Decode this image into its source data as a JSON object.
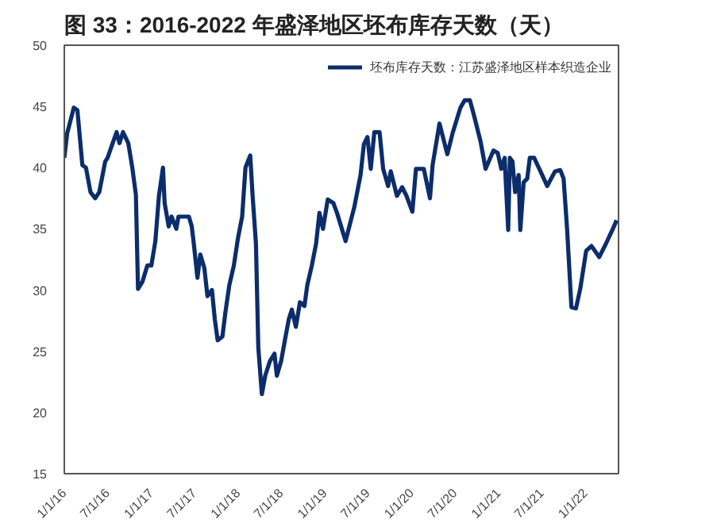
{
  "chart_data": {
    "type": "line",
    "title": "图 33：2016-2022 年盛泽地区坯布库存天数（天）",
    "x": [
      "2016-01-01",
      "2016-01-13",
      "2016-02-10",
      "2016-02-25",
      "2016-03-17",
      "2016-04-01",
      "2016-04-20",
      "2016-05-10",
      "2016-05-27",
      "2016-06-21",
      "2016-07-01",
      "2016-07-26",
      "2016-08-08",
      "2016-08-20",
      "2016-09-04",
      "2016-09-26",
      "2016-10-13",
      "2016-10-28",
      "2016-11-06",
      "2016-11-25",
      "2016-12-15",
      "2017-01-01",
      "2017-01-18",
      "2017-02-02",
      "2017-02-19",
      "2017-02-26",
      "2017-03-15",
      "2017-03-27",
      "2017-04-16",
      "2017-04-25",
      "2017-06-08",
      "2017-06-20",
      "2017-06-28",
      "2017-07-14",
      "2017-07-26",
      "2017-08-12",
      "2017-08-25",
      "2017-09-13",
      "2017-09-25",
      "2017-10-07",
      "2017-10-27",
      "2017-11-08",
      "2017-11-25",
      "2017-12-14",
      "2018-01-01",
      "2018-01-18",
      "2018-02-01",
      "2018-02-21",
      "2018-03-03",
      "2018-03-17",
      "2018-03-27",
      "2018-04-11",
      "2018-04-25",
      "2018-05-15",
      "2018-06-03",
      "2018-06-13",
      "2018-07-01",
      "2018-07-14",
      "2018-08-02",
      "2018-08-15",
      "2018-09-01",
      "2018-09-18",
      "2018-10-07",
      "2018-10-19",
      "2018-11-07",
      "2018-11-25",
      "2018-12-09",
      "2018-12-24",
      "2019-01-13",
      "2019-02-06",
      "2019-02-21",
      "2019-03-29",
      "2019-05-05",
      "2019-05-31",
      "2019-06-14",
      "2019-06-29",
      "2019-07-13",
      "2019-07-28",
      "2019-08-19",
      "2019-09-03",
      "2019-09-24",
      "2019-10-05",
      "2019-10-31",
      "2019-11-22",
      "2019-12-10",
      "2020-01-04",
      "2020-01-19",
      "2020-02-21",
      "2020-03-18",
      "2020-03-29",
      "2020-04-27",
      "2020-05-30",
      "2020-06-21",
      "2020-07-24",
      "2020-08-11",
      "2020-09-02",
      "2020-09-20",
      "2020-10-16",
      "2020-11-07",
      "2020-12-10",
      "2020-12-28",
      "2021-01-12",
      "2021-01-26",
      "2021-02-10",
      "2021-02-17",
      "2021-02-28",
      "2021-03-11",
      "2021-03-26",
      "2021-04-02",
      "2021-04-16",
      "2021-05-01",
      "2021-05-12",
      "2021-05-30",
      "2021-06-21",
      "2021-07-24",
      "2021-08-26",
      "2021-09-17",
      "2021-10-01",
      "2021-10-16",
      "2021-11-03",
      "2021-11-22",
      "2021-12-10",
      "2022-01-04",
      "2022-01-26",
      "2022-02-28",
      "2022-03-26",
      "2022-04-24",
      "2022-05-12"
    ],
    "series": [
      {
        "name": "坯布库存天数：江苏盛泽地区样本织造企业",
        "color": "#0c2d6b",
        "values": [
          40.8,
          42.8,
          44.9,
          44.7,
          40.2,
          40,
          38,
          37.5,
          38,
          40.5,
          40.8,
          42.2,
          42.9,
          42,
          42.9,
          42,
          40,
          37.8,
          30.1,
          30.7,
          32,
          32,
          34,
          37.7,
          40,
          37.1,
          35.2,
          36,
          35,
          36,
          36,
          35.2,
          33.9,
          31,
          32.9,
          31.8,
          29.5,
          30,
          27.6,
          25.9,
          26.2,
          28.1,
          30.4,
          32,
          34.3,
          36,
          40,
          41,
          37.7,
          33.8,
          25.3,
          21.5,
          23,
          24.2,
          24.8,
          23,
          24.2,
          25.6,
          27.6,
          28.4,
          27,
          29,
          28.7,
          30.4,
          32,
          33.8,
          36.3,
          35,
          37.4,
          37.1,
          36.3,
          34.0,
          36.8,
          39.4,
          41.9,
          42.5,
          39.9,
          42.9,
          42.9,
          39.9,
          38.5,
          39.7,
          37.7,
          38.4,
          37.7,
          36.4,
          39.9,
          39.9,
          37.5,
          40.2,
          43.6,
          41.1,
          42.8,
          44.9,
          45.5,
          45.5,
          44.2,
          42.2,
          39.9,
          41.4,
          41.2,
          39.9,
          40.8,
          34.9,
          40.8,
          40.5,
          38,
          39.4,
          34.9,
          38.8,
          39.1,
          40.8,
          40.8,
          39.9,
          38.5,
          39.7,
          39.8,
          39.1,
          34.9,
          28.6,
          28.5,
          30.1,
          33.2,
          33.6,
          32.7,
          33.7,
          34.9,
          35.7
        ]
      }
    ],
    "xlim": [
      "2016-01-01",
      "2022-05-20"
    ],
    "xticks": [
      {
        "value": "2016-01-01",
        "label": "1/1/16"
      },
      {
        "value": "2016-07-01",
        "label": "7/1/16"
      },
      {
        "value": "2017-01-01",
        "label": "1/1/17"
      },
      {
        "value": "2017-07-01",
        "label": "7/1/17"
      },
      {
        "value": "2018-01-01",
        "label": "1/1/18"
      },
      {
        "value": "2018-07-01",
        "label": "7/1/18"
      },
      {
        "value": "2019-01-01",
        "label": "1/1/19"
      },
      {
        "value": "2019-07-01",
        "label": "7/1/19"
      },
      {
        "value": "2020-01-01",
        "label": "1/1/20"
      },
      {
        "value": "2020-07-01",
        "label": "7/1/20"
      },
      {
        "value": "2021-01-01",
        "label": "1/1/21"
      },
      {
        "value": "2021-07-01",
        "label": "7/1/21"
      },
      {
        "value": "2022-01-01",
        "label": "1/1/22"
      }
    ],
    "ylim": [
      15,
      50
    ],
    "yticks": [
      15,
      20,
      25,
      30,
      35,
      40,
      45,
      50
    ],
    "grid": false,
    "legend": "top right",
    "marker": "none",
    "line_style": "solid"
  }
}
